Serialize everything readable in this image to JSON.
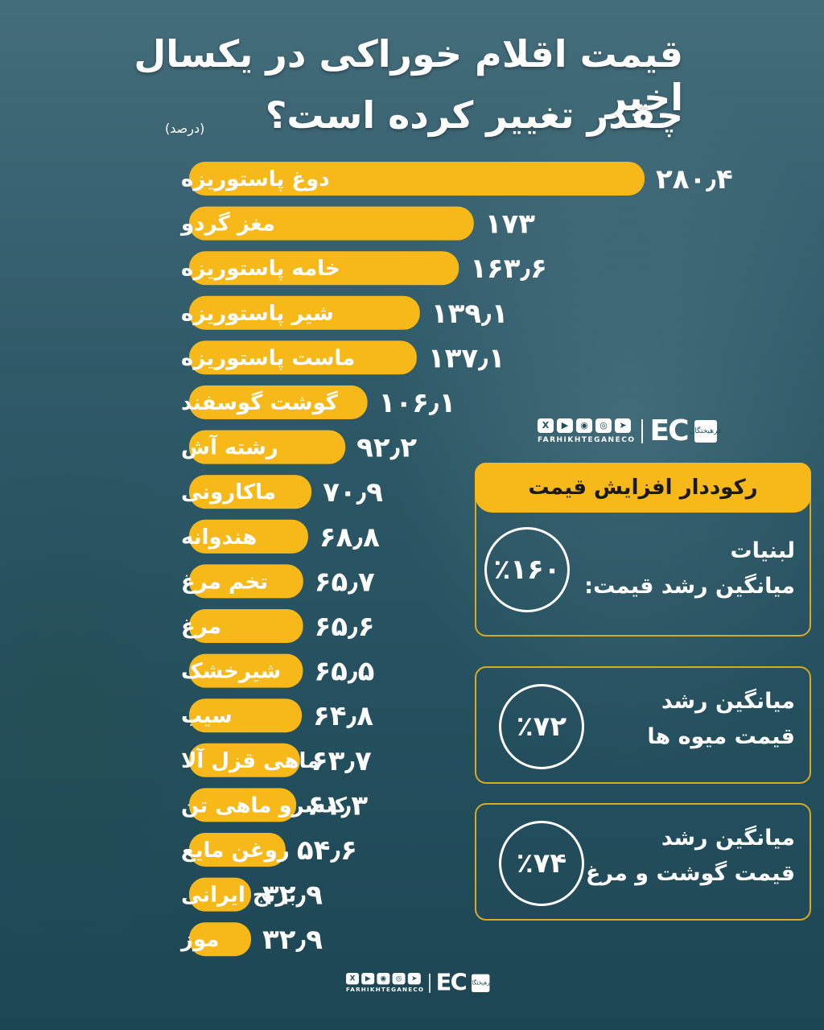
{
  "header": {
    "title_line1": "قیمت اقلام خوراکی در یکسال اخیر",
    "title_line2": "چقدر تغییر کرده است؟",
    "unit": "(درصد)"
  },
  "chart_data": {
    "type": "bar",
    "orientation": "horizontal",
    "categories": [
      "دوغ پاستوریزه",
      "مغز گردو",
      "خامه پاستوریزه",
      "شیر پاستوریزه",
      "ماست پاستوریزه",
      "گوشت گوسفند",
      "رشته آش",
      "ماکارونی",
      "هندوانه",
      "تخم مرغ",
      "مرغ",
      "شیرخشک",
      "سیب",
      "ماهی قزل آلا",
      "کنسرو ماهی تن",
      "روغن مایع",
      "برنج ایرانی",
      "موز"
    ],
    "values": [
      280.4,
      173,
      163.6,
      139.1,
      137.1,
      106.1,
      92.2,
      70.9,
      68.8,
      65.7,
      65.6,
      65.5,
      64.8,
      63.7,
      61.3,
      54.6,
      32.9,
      32.9
    ],
    "value_labels": [
      "۲۸۰٫۴",
      "۱۷۳",
      "۱۶۳٫۶",
      "۱۳۹٫۱",
      "۱۳۷٫۱",
      "۱۰۶٫۱",
      "۹۲٫۲",
      "۷۰٫۹",
      "۶۸٫۸",
      "۶۵٫۷",
      "۶۵٫۶",
      "۶۵٫۵",
      "۶۴٫۸",
      "۶۳٫۷",
      "۶۱٫۳",
      "۵۴٫۶",
      "۳۲٫۹",
      "۳۲٫۹"
    ],
    "bar_color": "#f7b91a"
  },
  "records": {
    "header": "رکوددار افزایش قیمت",
    "box1": {
      "line1": "لبنیات",
      "line2": "میانگین رشد قیمت:",
      "value": "٪۱۶۰"
    },
    "box2": {
      "line1": "میانگین رشد",
      "line2": "قیمت  میوه ها",
      "value": "٪۷۲"
    },
    "box3": {
      "line1": "میانگین رشد",
      "line2": "قیمت گوشت و مرغ",
      "value": "٪۷۴"
    }
  },
  "brand": {
    "url": "FARHIKHTEGANECO",
    "logo": "EC",
    "seal": "فرهیختگان",
    "social_icons": [
      "x-icon",
      "youtube-icon",
      "aparat-icon",
      "instagram-icon",
      "telegram-icon"
    ]
  }
}
